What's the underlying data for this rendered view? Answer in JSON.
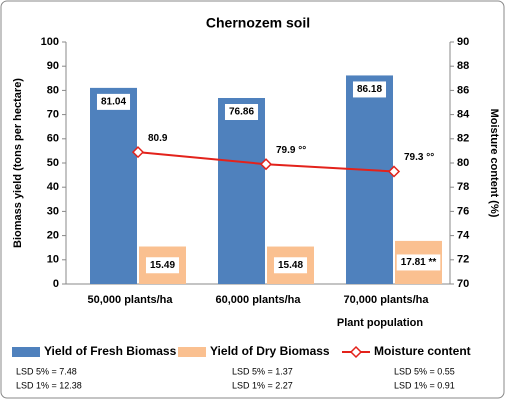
{
  "chart_data": {
    "type": "bar",
    "title": "Chernozem soil",
    "ylabel": "Biomass yield (tons per hectare)",
    "y2label": "Moisture content (%)",
    "xlabel": "Plant population",
    "categories": [
      "50,000 plants/ha",
      "60,000 plants/ha",
      "70,000 plants/ha"
    ],
    "series": [
      {
        "name": "Yield of Fresh Biomass",
        "type": "bar",
        "color": "#4f81bd",
        "values": [
          81.04,
          76.86,
          86.18
        ]
      },
      {
        "name": "Yield of Dry Biomass",
        "type": "bar",
        "color": "#fac090",
        "values": [
          15.49,
          15.48,
          17.81
        ],
        "value_labels": [
          "15.49",
          "15.48",
          "17.81 **"
        ]
      },
      {
        "name": "Moisture content",
        "type": "line",
        "axis": "y2",
        "color": "#e3221b",
        "values": [
          80.9,
          79.9,
          79.3
        ],
        "value_labels": [
          "80.9",
          "79.9 °°",
          "79.3 °°"
        ]
      }
    ],
    "ylim": [
      0,
      100
    ],
    "yticks": [
      0,
      10,
      20,
      30,
      40,
      50,
      60,
      70,
      80,
      90,
      100
    ],
    "y2lim": [
      70,
      90
    ],
    "y2ticks": [
      70,
      72,
      74,
      76,
      78,
      80,
      82,
      84,
      86,
      88,
      90
    ],
    "grid": false,
    "legend": "bottom",
    "notes": [
      [
        "LSD 5% = 7.48",
        "LSD 1% = 12.38"
      ],
      [
        "LSD 5% = 1.37",
        "LSD 1% = 2.27"
      ],
      [
        "LSD 5% = 0.55",
        "LSD 1% = 0.91"
      ]
    ]
  }
}
